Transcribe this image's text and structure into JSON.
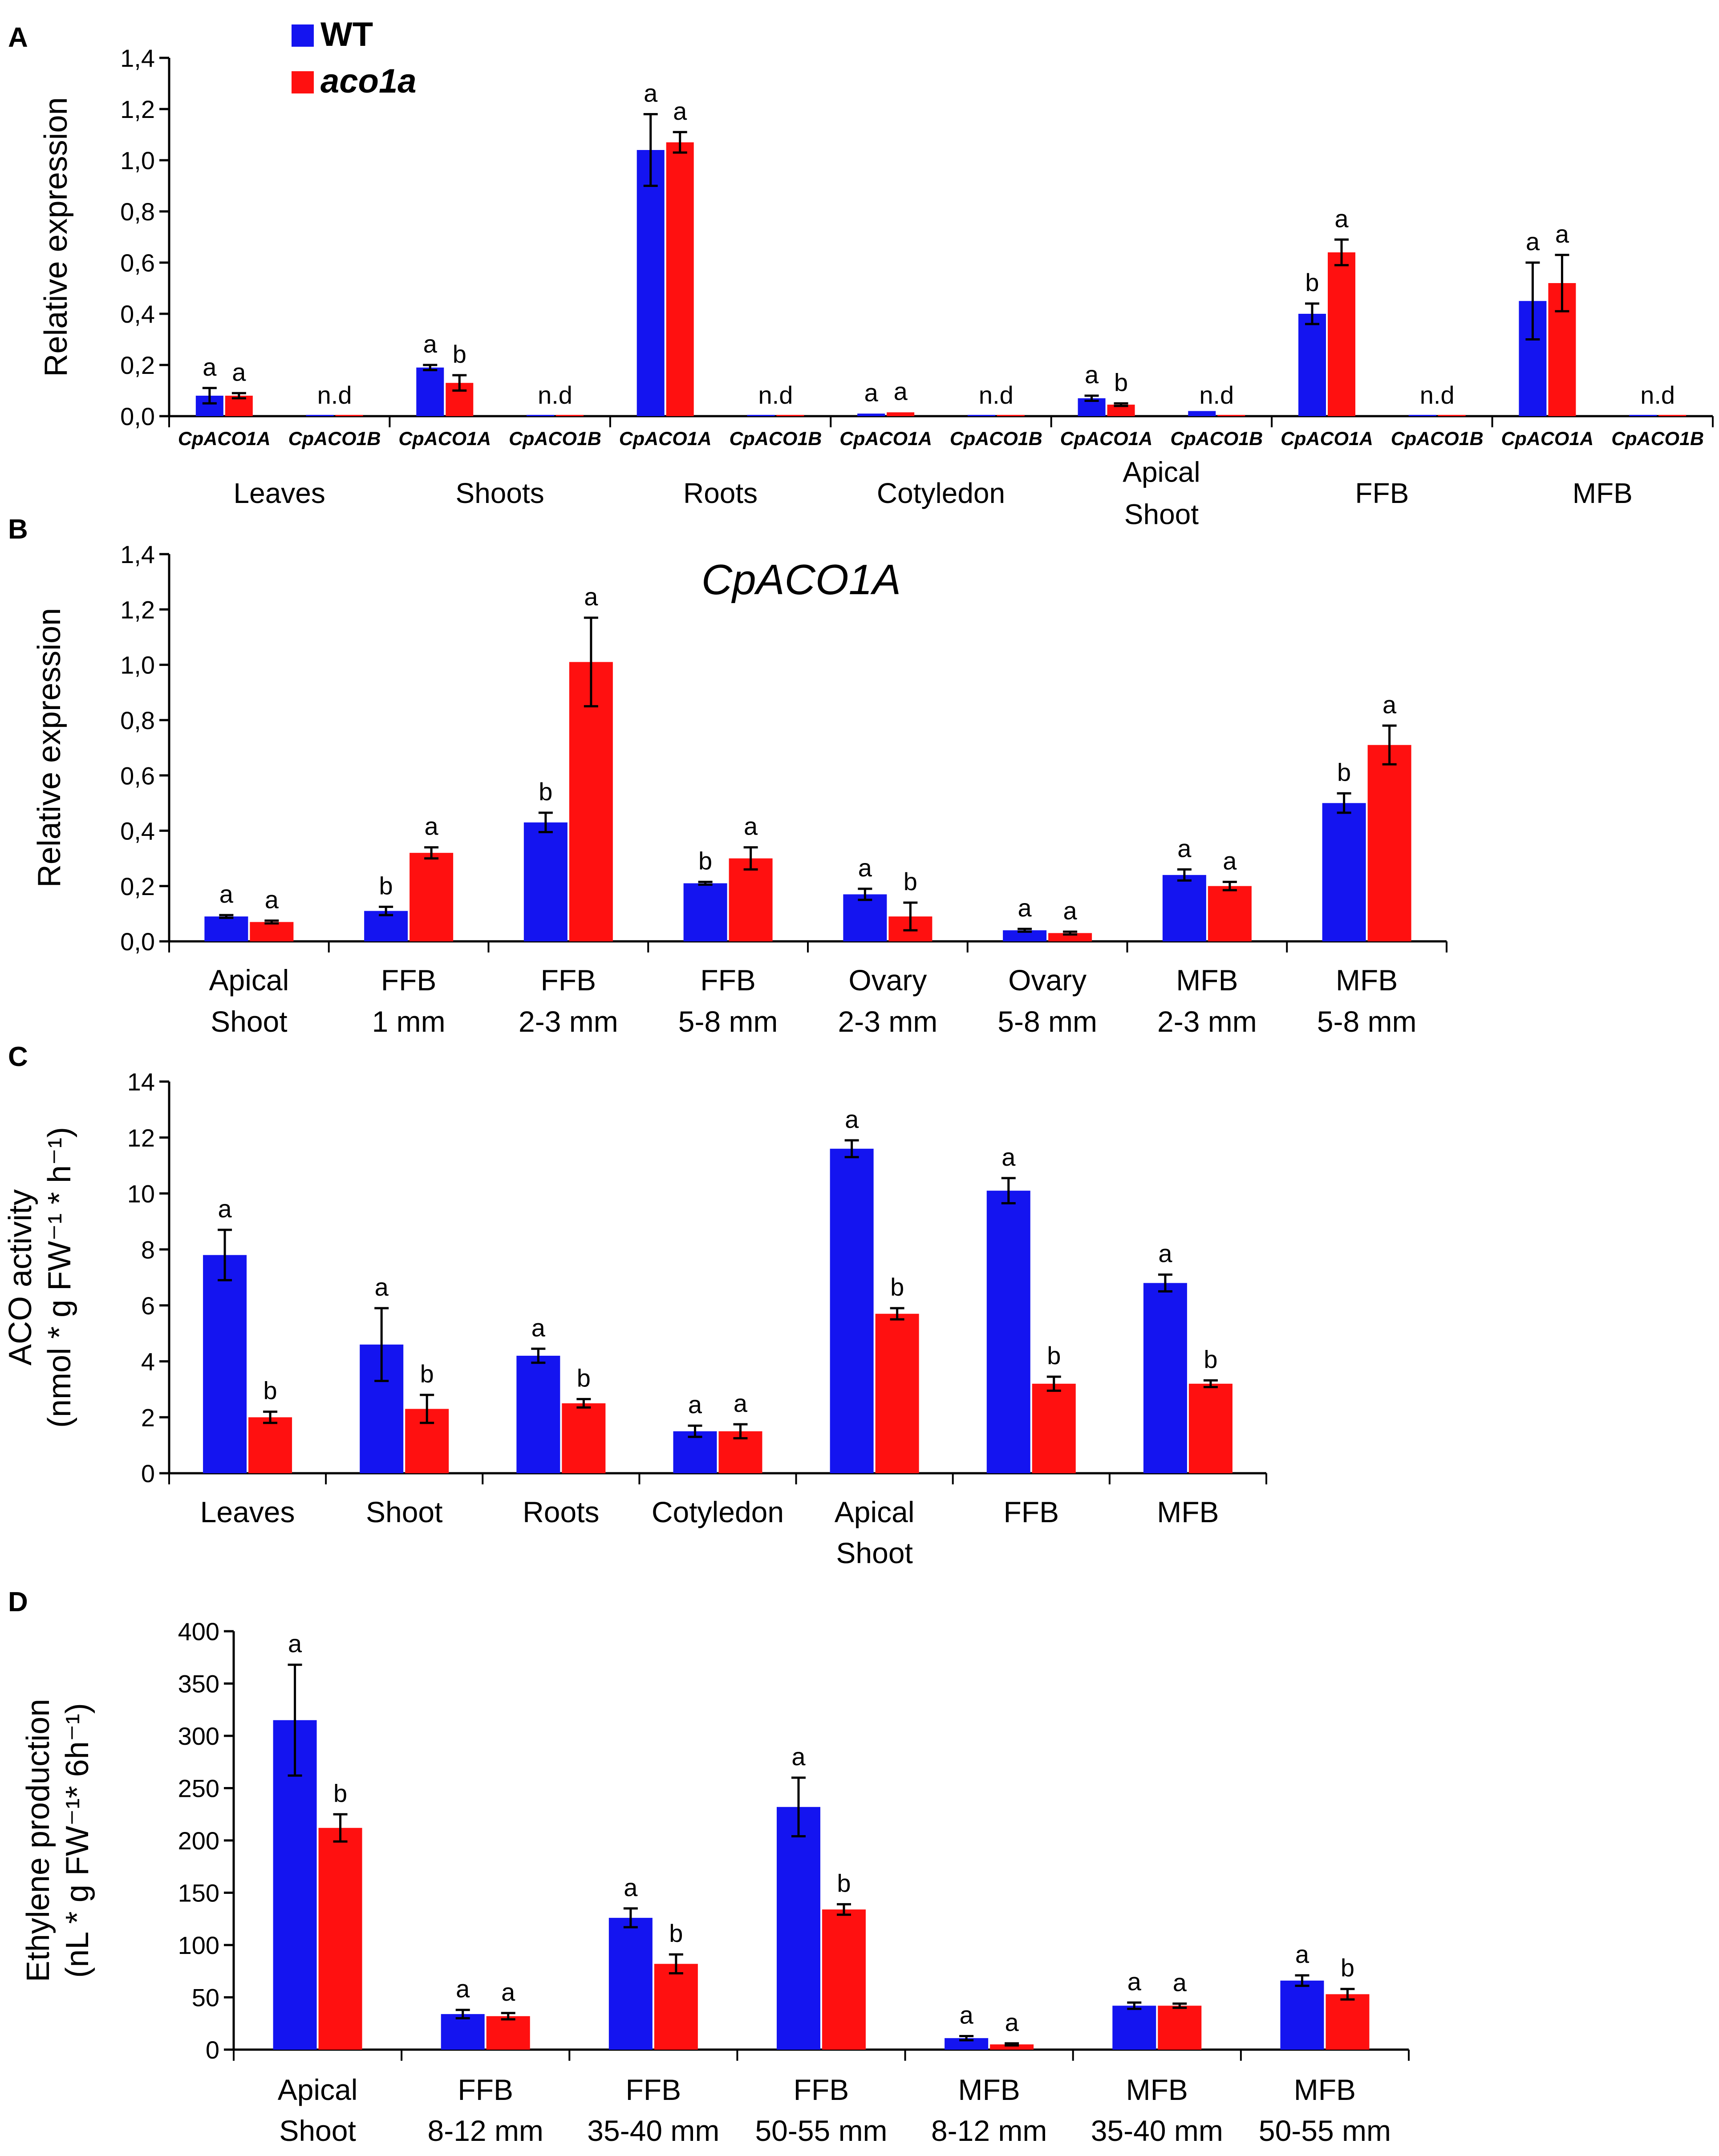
{
  "legend": {
    "entries": [
      {
        "label": "WT",
        "color": "#1414f0",
        "italic": false
      },
      {
        "label": "aco1a",
        "color": "#ff1010",
        "italic": true
      }
    ]
  },
  "colors": {
    "wt": "#1414f0",
    "mutant": "#ff1010",
    "axis": "#000000"
  },
  "chart_data": [
    {
      "panel": "A",
      "type": "bar",
      "title": "",
      "ylabel": [
        "Relative expression"
      ],
      "ylim": [
        0,
        1.4
      ],
      "yticks": [
        "0,0",
        "0,2",
        "0,4",
        "0,6",
        "0,8",
        "1,0",
        "1,2",
        "1,4"
      ],
      "subcategory_style": "italic-bold",
      "categories": [
        [
          "CpACO1A"
        ],
        [
          "CpACO1B"
        ],
        [
          "CpACO1A"
        ],
        [
          "CpACO1B"
        ],
        [
          "CpACO1A"
        ],
        [
          "CpACO1B"
        ],
        [
          "CpACO1A"
        ],
        [
          "CpACO1B"
        ],
        [
          "CpACO1A"
        ],
        [
          "CpACO1B"
        ],
        [
          "CpACO1A"
        ],
        [
          "CpACO1B"
        ],
        [
          "CpACO1A"
        ],
        [
          "CpACO1B"
        ]
      ],
      "groups": [
        [
          "Leaves"
        ],
        [
          "Shoots"
        ],
        [
          "Roots"
        ],
        [
          "Cotyledon"
        ],
        [
          "Apical",
          "Shoot"
        ],
        [
          "FFB"
        ],
        [
          "MFB"
        ]
      ],
      "series": [
        {
          "name": "WT",
          "values": [
            0.08,
            0.005,
            0.19,
            0.005,
            1.04,
            0.005,
            0.01,
            0.005,
            0.07,
            0.02,
            0.4,
            0.005,
            0.45,
            0.005
          ],
          "errors": [
            0.03,
            0,
            0.01,
            0,
            0.14,
            0,
            0,
            0,
            0.01,
            0,
            0.04,
            0,
            0.15,
            0
          ],
          "labels": [
            "a",
            "",
            "a",
            "",
            "a",
            "",
            "a",
            "",
            "a",
            "",
            "b",
            "",
            "a",
            ""
          ]
        },
        {
          "name": "aco1a",
          "values": [
            0.08,
            0.005,
            0.13,
            0.005,
            1.07,
            0.005,
            0.015,
            0.005,
            0.045,
            0.005,
            0.64,
            0.005,
            0.52,
            0.005
          ],
          "errors": [
            0.01,
            0,
            0.03,
            0,
            0.04,
            0,
            0,
            0,
            0.005,
            0,
            0.05,
            0,
            0.11,
            0
          ],
          "labels": [
            "a",
            "",
            "b",
            "",
            "a",
            "",
            "a",
            "",
            "b",
            "",
            "a",
            "",
            "a",
            ""
          ]
        }
      ],
      "group_annotations": [
        "",
        "n.d",
        "",
        "n.d",
        "",
        "n.d",
        "",
        "n.d",
        "",
        "n.d",
        "",
        "n.d",
        "",
        "n.d"
      ]
    },
    {
      "panel": "B",
      "type": "bar",
      "title": "CpACO1A",
      "ylabel": [
        "Relative expression"
      ],
      "ylim": [
        0,
        1.4
      ],
      "yticks": [
        "0,0",
        "0,2",
        "0,4",
        "0,6",
        "0,8",
        "1,0",
        "1,2",
        "1,4"
      ],
      "categories": [
        [
          "Apical",
          "Shoot"
        ],
        [
          "FFB",
          "1 mm"
        ],
        [
          "FFB",
          "2-3 mm"
        ],
        [
          "FFB",
          "5-8 mm"
        ],
        [
          "Ovary",
          "2-3 mm"
        ],
        [
          "Ovary",
          "5-8 mm"
        ],
        [
          "MFB",
          "2-3 mm"
        ],
        [
          "MFB",
          "5-8 mm"
        ]
      ],
      "series": [
        {
          "name": "WT",
          "values": [
            0.09,
            0.11,
            0.43,
            0.21,
            0.17,
            0.04,
            0.24,
            0.5
          ],
          "errors": [
            0.005,
            0.015,
            0.035,
            0.005,
            0.02,
            0.005,
            0.02,
            0.035
          ],
          "labels": [
            "a",
            "b",
            "b",
            "b",
            "a",
            "a",
            "a",
            "b"
          ]
        },
        {
          "name": "aco1a",
          "values": [
            0.07,
            0.32,
            1.01,
            0.3,
            0.09,
            0.03,
            0.2,
            0.71
          ],
          "errors": [
            0.005,
            0.02,
            0.16,
            0.04,
            0.05,
            0.005,
            0.015,
            0.07
          ],
          "labels": [
            "a",
            "a",
            "a",
            "a",
            "b",
            "a",
            "a",
            "a"
          ]
        }
      ]
    },
    {
      "panel": "C",
      "type": "bar",
      "title": "",
      "ylabel": [
        "ACO activity",
        "(nmol * g FW⁻¹ * h⁻¹)"
      ],
      "ylim": [
        0,
        14
      ],
      "yticks": [
        "0",
        "2",
        "4",
        "6",
        "8",
        "10",
        "12",
        "14"
      ],
      "categories": [
        [
          "Leaves"
        ],
        [
          "Shoot"
        ],
        [
          "Roots"
        ],
        [
          "Cotyledon"
        ],
        [
          "Apical",
          "Shoot"
        ],
        [
          "FFB"
        ],
        [
          "MFB"
        ]
      ],
      "series": [
        {
          "name": "WT",
          "values": [
            7.8,
            4.6,
            4.2,
            1.5,
            11.6,
            10.1,
            6.8
          ],
          "errors": [
            0.9,
            1.3,
            0.25,
            0.2,
            0.3,
            0.45,
            0.3
          ],
          "labels": [
            "a",
            "a",
            "a",
            "a",
            "a",
            "a",
            "a"
          ]
        },
        {
          "name": "aco1a",
          "values": [
            2.0,
            2.3,
            2.5,
            1.5,
            5.7,
            3.2,
            3.2
          ],
          "errors": [
            0.2,
            0.5,
            0.15,
            0.25,
            0.2,
            0.25,
            0.12
          ],
          "labels": [
            "b",
            "b",
            "b",
            "a",
            "b",
            "b",
            "b"
          ]
        }
      ]
    },
    {
      "panel": "D",
      "type": "bar",
      "title": "",
      "ylabel": [
        "Ethylene production",
        "(nL * g FW⁻¹* 6h⁻¹)"
      ],
      "ylim": [
        0,
        400
      ],
      "yticks": [
        "0",
        "50",
        "100",
        "150",
        "200",
        "250",
        "300",
        "350",
        "400"
      ],
      "categories": [
        [
          "Apical",
          "Shoot"
        ],
        [
          "FFB",
          "8-12 mm"
        ],
        [
          "FFB",
          "35-40 mm"
        ],
        [
          "FFB",
          "50-55 mm"
        ],
        [
          "MFB",
          "8-12 mm"
        ],
        [
          "MFB",
          "35-40 mm"
        ],
        [
          "MFB",
          "50-55 mm"
        ]
      ],
      "series": [
        {
          "name": "WT",
          "values": [
            315,
            34,
            126,
            232,
            11,
            42,
            66
          ],
          "errors": [
            53,
            4,
            9,
            28,
            2,
            3,
            5
          ],
          "labels": [
            "a",
            "a",
            "a",
            "a",
            "a",
            "a",
            "a"
          ]
        },
        {
          "name": "aco1a",
          "values": [
            212,
            32,
            82,
            134,
            5,
            42,
            53
          ],
          "errors": [
            13,
            3,
            9,
            5,
            1,
            2,
            5
          ],
          "labels": [
            "b",
            "a",
            "b",
            "b",
            "a",
            "a",
            "b"
          ]
        }
      ]
    }
  ]
}
